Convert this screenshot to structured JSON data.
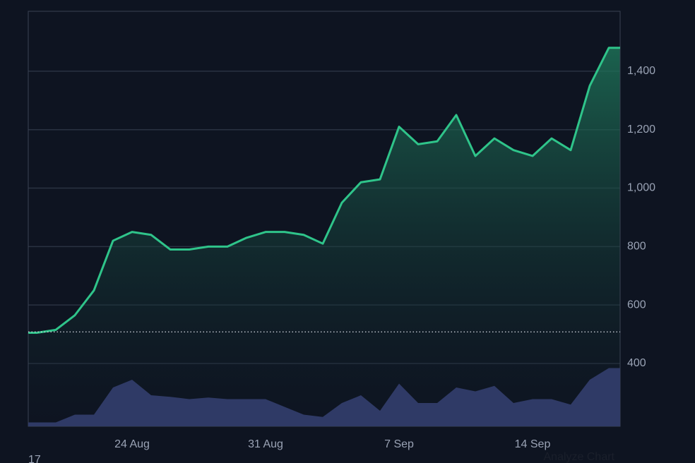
{
  "chart_data": {
    "type": "line",
    "x": [
      "19 Aug",
      "20 Aug",
      "21 Aug",
      "22 Aug",
      "23 Aug",
      "24 Aug",
      "25 Aug",
      "26 Aug",
      "27 Aug",
      "28 Aug",
      "29 Aug",
      "30 Aug",
      "31 Aug",
      "1 Sep",
      "2 Sep",
      "3 Sep",
      "4 Sep",
      "5 Sep",
      "6 Sep",
      "7 Sep",
      "8 Sep",
      "9 Sep",
      "10 Sep",
      "11 Sep",
      "12 Sep",
      "13 Sep",
      "14 Sep",
      "15 Sep",
      "16 Sep",
      "17 Sep",
      "18 Sep"
    ],
    "xticks": [
      "24 Aug",
      "31 Aug",
      "7 Sep",
      "14 Sep"
    ],
    "series": [
      {
        "color": "#2fc48a",
        "values": [
          505,
          515,
          565,
          650,
          820,
          850,
          840,
          790,
          790,
          800,
          800,
          830,
          850,
          850,
          840,
          810,
          950,
          1020,
          1030,
          1210,
          1150,
          1160,
          1250,
          1110,
          1170,
          1130,
          1110,
          1170,
          1130,
          1350,
          1480
        ]
      }
    ],
    "volume": {
      "color": "#2f3a66",
      "values": [
        5,
        5,
        15,
        15,
        50,
        60,
        40,
        38,
        35,
        37,
        35,
        35,
        35,
        25,
        15,
        12,
        30,
        40,
        20,
        55,
        30,
        30,
        50,
        45,
        52,
        30,
        35,
        35,
        28,
        60,
        75
      ]
    },
    "volume_lim": [
      0,
      100
    ],
    "baseline": 508,
    "ylim": [
      185,
      1605
    ],
    "yticks": [
      400,
      600,
      800,
      {
        "value": 1000,
        "label": "1,000"
      },
      {
        "value": 1200,
        "label": "1,200"
      },
      {
        "value": 1400,
        "label": "1,400"
      }
    ],
    "grid": true,
    "footer_left": "17",
    "footer_link": "Analyze Chart"
  }
}
